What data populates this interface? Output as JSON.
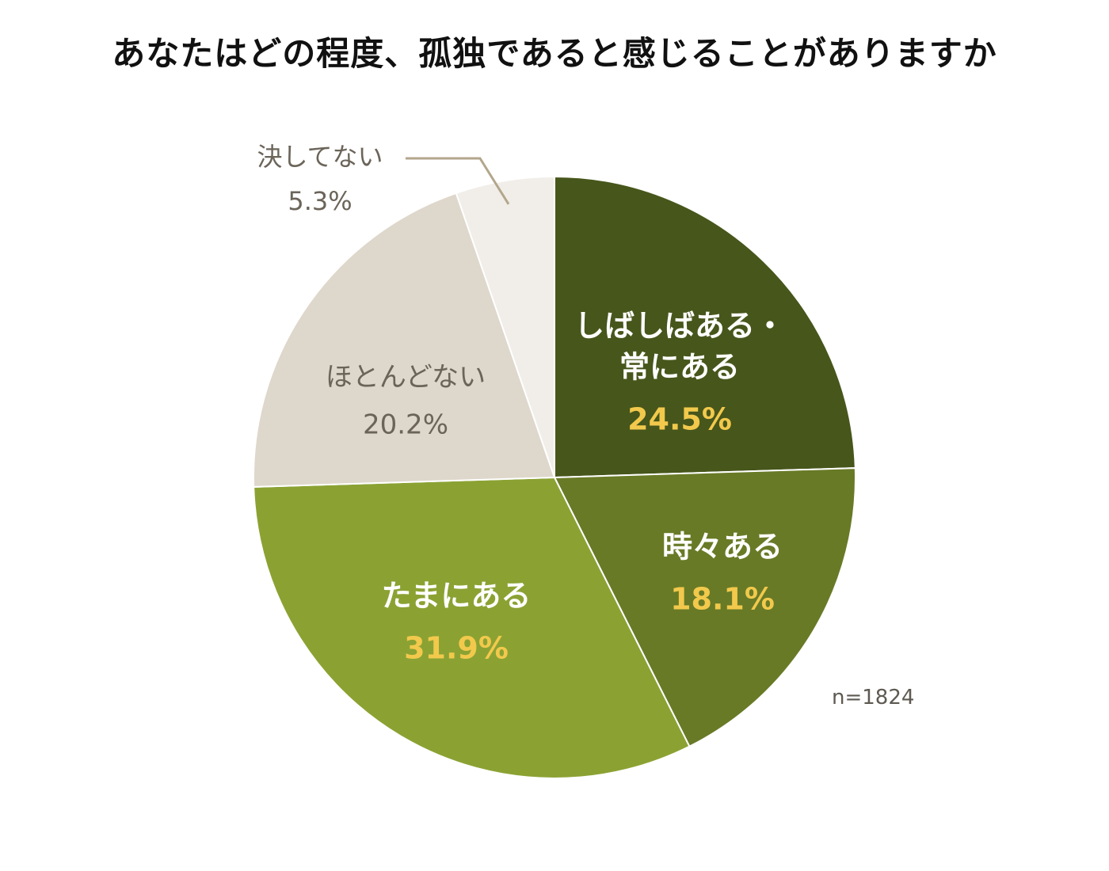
{
  "chart_data": {
    "type": "pie",
    "title": "あなたはどの程度、孤独であると感じることがありますか",
    "slices": [
      {
        "label": "しばしばある・\n常にある",
        "value": 24.5,
        "value_label": "24.5%",
        "color": "#47561b",
        "label_color": "#ffffff",
        "value_color": "#f2c94c",
        "bold": true
      },
      {
        "label": "時々ある",
        "value": 18.1,
        "value_label": "18.1%",
        "color": "#687a26",
        "label_color": "#ffffff",
        "value_color": "#f2c94c",
        "bold": true
      },
      {
        "label": "たまにある",
        "value": 31.9,
        "value_label": "31.9%",
        "color": "#8ba233",
        "label_color": "#ffffff",
        "value_color": "#f2c94c",
        "bold": true
      },
      {
        "label": "ほとんどない",
        "value": 20.2,
        "value_label": "20.2%",
        "color": "#ded7cb",
        "label_color": "#6b6459",
        "value_color": "#6b6459",
        "bold": false
      },
      {
        "label": "決してない",
        "value": 5.3,
        "value_label": "5.3%",
        "color": "#f1eee9",
        "label_color": "#6b6459",
        "value_color": "#6b6459",
        "bold": false
      }
    ],
    "start_angle_deg": 0,
    "direction": "clockwise",
    "sample_size": "n=1824"
  }
}
